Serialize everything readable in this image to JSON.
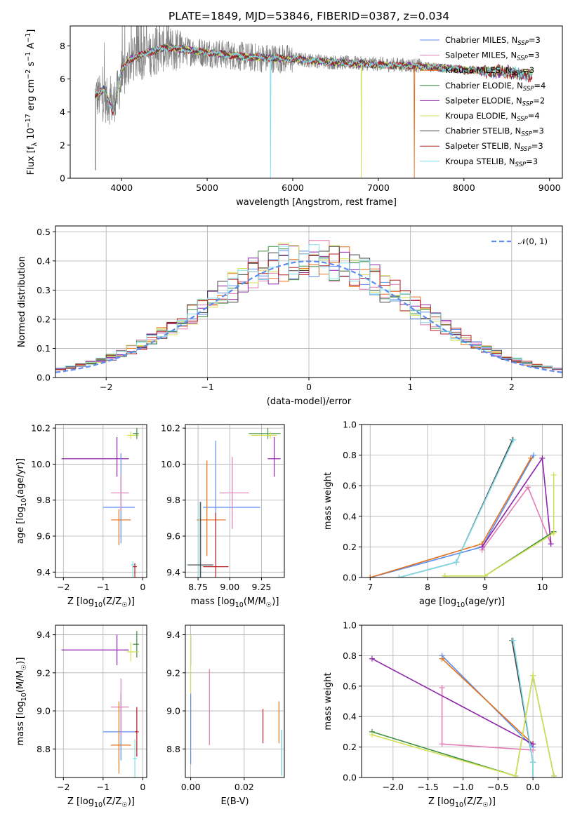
{
  "figure_title": "PLATE=1849, MJD=53846, FIBERID=0387, z=0.034",
  "models": [
    {
      "name": "Chabrier MILES",
      "nssp": "3",
      "color": "#5b8def"
    },
    {
      "name": "Salpeter MILES",
      "nssp": "3",
      "color": "#e27cb6"
    },
    {
      "name": "Kroupa MILES",
      "nssp": "3",
      "color": "#e2711d"
    },
    {
      "name": "Chabrier ELODIE",
      "nssp": "4",
      "color": "#3e8e41"
    },
    {
      "name": "Salpeter ELODIE",
      "nssp": "2",
      "color": "#8e24aa"
    },
    {
      "name": "Kroupa ELODIE",
      "nssp": "4",
      "color": "#d4e157"
    },
    {
      "name": "Chabrier STELIB",
      "nssp": "3",
      "color": "#444444"
    },
    {
      "name": "Salpeter STELIB",
      "nssp": "3",
      "color": "#b71c1c"
    },
    {
      "name": "Kroupa STELIB",
      "nssp": "3",
      "color": "#80deea"
    }
  ],
  "chart_data": [
    {
      "id": "spectrum",
      "type": "line",
      "title": "PLATE=1849, MJD=53846, FIBERID=0387, z=0.034",
      "xlabel": "wavelength [Angstrom, rest frame]",
      "ylabel": "Flux [f_λ 10^-17 erg cm^-2 s^-1 A^-1]",
      "xlim": [
        3400,
        9150
      ],
      "ylim": [
        0,
        9.2
      ],
      "xticks": [
        4000,
        5000,
        6000,
        7000,
        8000,
        9000
      ],
      "yticks": [
        0,
        2,
        4,
        6,
        8
      ],
      "observed_color": "#808080",
      "observed_envelope": {
        "x": [
          3700,
          3900,
          4100,
          4300,
          4500,
          5000,
          5500,
          6000,
          6500,
          7000,
          7500,
          8000,
          8500,
          8800
        ],
        "mean": [
          5.0,
          4.5,
          7.1,
          7.4,
          7.8,
          7.6,
          7.3,
          7.2,
          7.0,
          6.9,
          6.8,
          6.6,
          6.4,
          6.1
        ]
      },
      "model_mean": {
        "x": [
          3700,
          3800,
          3900,
          4000,
          4100,
          4200,
          4300,
          4400,
          4500,
          4700,
          5000,
          5500,
          6000,
          6500,
          7000,
          7500,
          8000,
          8500,
          8800
        ],
        "y": [
          5.0,
          5.4,
          4.0,
          6.6,
          7.2,
          7.4,
          7.6,
          7.7,
          7.9,
          7.8,
          7.6,
          7.3,
          7.2,
          7.0,
          6.85,
          6.75,
          6.55,
          6.4,
          6.2
        ]
      },
      "dropouts": [
        {
          "model": "Kroupa STELIB",
          "x": 5740
        },
        {
          "model": "Kroupa ELODIE",
          "x": 6800
        },
        {
          "model": "Kroupa MILES",
          "x": 7420
        }
      ]
    },
    {
      "id": "residuals",
      "type": "bar",
      "xlabel": "(data-model)/error",
      "ylabel": "Normed distribution",
      "xlim": [
        -2.5,
        2.5
      ],
      "ylim": [
        0,
        0.52
      ],
      "xticks": [
        -2,
        -1,
        0,
        1,
        2
      ],
      "yticks": [
        0.0,
        0.1,
        0.2,
        0.3,
        0.4,
        0.5
      ],
      "bin_width": 0.1,
      "reference_label": "𝒩(0, 1)",
      "reference_color": "#5b8def"
    },
    {
      "id": "age-vs-z",
      "type": "scatter",
      "xlabel": "Z [log10(Z/Z☉)]",
      "ylabel": "age [log10(age/yr)]",
      "xlim": [
        -2.2,
        0.1
      ],
      "ylim": [
        9.37,
        10.22
      ],
      "xticks": [
        -2,
        -1,
        0
      ],
      "yticks": [
        9.4,
        9.6,
        9.8,
        10.0,
        10.2
      ],
      "points": [
        {
          "model": "Salpeter ELODIE",
          "x": -0.65,
          "xerr": [
            1.4,
            0.3
          ],
          "y": 10.03,
          "yerr": [
            0.1,
            0.12
          ]
        },
        {
          "model": "Chabrier MILES",
          "x": -0.55,
          "xerr": [
            0.45,
            0.35
          ],
          "y": 9.76,
          "yerr": [
            0.2,
            0.3
          ]
        },
        {
          "model": "Salpeter MILES",
          "x": -0.55,
          "xerr": [
            0.25,
            0.2
          ],
          "y": 9.84,
          "yerr": [
            0.1,
            0.1
          ]
        },
        {
          "model": "Kroupa MILES",
          "x": -0.6,
          "xerr": [
            0.2,
            0.3
          ],
          "y": 9.69,
          "yerr": [
            0.14,
            0.06
          ]
        },
        {
          "model": "Kroupa ELODIE",
          "x": -0.3,
          "xerr": [
            0.1,
            0.2
          ],
          "y": 10.16,
          "yerr": [
            0.02,
            0.02
          ]
        },
        {
          "model": "Chabrier ELODIE",
          "x": -0.15,
          "xerr": [
            0.1,
            0.05
          ],
          "y": 10.17,
          "yerr": [
            0.03,
            0.03
          ]
        },
        {
          "model": "Kroupa STELIB",
          "x": -0.25,
          "xerr": [
            0.05,
            0.05
          ],
          "y": 9.44,
          "yerr": [
            0.3,
            0.02
          ]
        },
        {
          "model": "Salpeter STELIB",
          "x": -0.2,
          "xerr": [
            0.05,
            0.05
          ],
          "y": 9.43,
          "yerr": [
            0.3,
            0.02
          ]
        }
      ]
    },
    {
      "id": "age-vs-mass",
      "type": "scatter",
      "xlabel": "mass [log10(M/M☉)]",
      "ylabel": "",
      "xlim": [
        8.65,
        9.43
      ],
      "ylim": [
        9.37,
        10.22
      ],
      "xticks": [
        8.75,
        9.0,
        9.25
      ],
      "tick_labels": [
        "8.75",
        "9.00",
        "9.25"
      ],
      "yticks": [
        9.4,
        9.6,
        9.8,
        10.0,
        10.2
      ],
      "points": [
        {
          "model": "Salpeter ELODIE",
          "x": 9.35,
          "xerr": [
            0.05,
            0.05
          ],
          "y": 10.03,
          "yerr": [
            0.1,
            0.12
          ]
        },
        {
          "model": "Chabrier ELODIE",
          "x": 9.3,
          "xerr": [
            0.15,
            0.1
          ],
          "y": 10.17,
          "yerr": [
            0.03,
            0.03
          ]
        },
        {
          "model": "Kroupa ELODIE",
          "x": 9.32,
          "xerr": [
            0.15,
            0.05
          ],
          "y": 10.16,
          "yerr": [
            0.02,
            0.02
          ]
        },
        {
          "model": "Chabrier MILES",
          "x": 8.89,
          "xerr": [
            0.1,
            0.35
          ],
          "y": 9.76,
          "yerr": [
            0.3,
            0.37
          ]
        },
        {
          "model": "Salpeter MILES",
          "x": 9.02,
          "xerr": [
            0.1,
            0.13
          ],
          "y": 9.84,
          "yerr": [
            0.2,
            0.2
          ]
        },
        {
          "model": "Kroupa MILES",
          "x": 8.82,
          "xerr": [
            0.08,
            0.15
          ],
          "y": 9.69,
          "yerr": [
            0.2,
            0.33
          ]
        },
        {
          "model": "Salpeter STELIB",
          "x": 8.89,
          "xerr": [
            0.1,
            0.1
          ],
          "y": 9.43,
          "yerr": [
            0.3,
            0.3
          ]
        },
        {
          "model": "Kroupa STELIB",
          "x": 8.76,
          "xerr": [
            0.1,
            0.1
          ],
          "y": 9.44,
          "yerr": [
            0.35,
            0.35
          ]
        },
        {
          "model": "Chabrier STELIB",
          "x": 8.77,
          "xerr": [
            0.1,
            0.1
          ],
          "y": 9.44,
          "yerr": [
            0.35,
            0.35
          ]
        }
      ]
    },
    {
      "id": "weight-vs-age",
      "type": "line",
      "xlabel": "age [log10(age/yr)]",
      "ylabel": "mass weight",
      "xlim": [
        6.85,
        10.35
      ],
      "ylim": [
        0,
        1
      ],
      "xticks": [
        7,
        8,
        9,
        10
      ],
      "yticks": [
        0.0,
        0.2,
        0.4,
        0.6,
        0.8,
        1.0
      ],
      "series": [
        {
          "model": "Chabrier MILES",
          "x": [
            7.0,
            8.95,
            9.85
          ],
          "y": [
            0.0,
            0.2,
            0.8
          ]
        },
        {
          "model": "Kroupa MILES",
          "x": [
            7.0,
            8.95,
            9.8
          ],
          "y": [
            0.0,
            0.22,
            0.78
          ]
        },
        {
          "model": "Salpeter MILES",
          "x": [
            8.95,
            9.75,
            10.15
          ],
          "y": [
            0.18,
            0.59,
            0.22
          ]
        },
        {
          "model": "Salpeter ELODIE",
          "x": [
            8.95,
            10.0,
            10.15
          ],
          "y": [
            0.2,
            0.78,
            0.22
          ]
        },
        {
          "model": "Chabrier STELIB",
          "x": [
            7.5,
            8.5,
            9.48
          ],
          "y": [
            0.0,
            0.1,
            0.9
          ]
        },
        {
          "model": "Kroupa STELIB",
          "x": [
            7.5,
            8.5,
            9.5
          ],
          "y": [
            0.0,
            0.1,
            0.9
          ]
        },
        {
          "model": "Chabrier ELODIE",
          "x": [
            8.3,
            9.0,
            10.2
          ],
          "y": [
            0.01,
            0.01,
            0.3
          ]
        },
        {
          "model": "Kroupa ELODIE",
          "x": [
            8.3,
            9.0,
            10.2,
            10.2
          ],
          "y": [
            0.01,
            0.01,
            0.29,
            0.67
          ]
        }
      ]
    },
    {
      "id": "mass-vs-z",
      "type": "scatter",
      "xlabel": "Z [log10(Z/Z☉)]",
      "ylabel": "mass [log10(M/M☉)]",
      "xlim": [
        -2.2,
        0.1
      ],
      "ylim": [
        8.65,
        9.45
      ],
      "xticks": [
        -2,
        -1,
        0
      ],
      "yticks": [
        8.8,
        9.0,
        9.2,
        9.4
      ],
      "points": [
        {
          "model": "Salpeter ELODIE",
          "x": -0.65,
          "xerr": [
            1.4,
            0.3
          ],
          "y": 9.32,
          "yerr": [
            0.08,
            0.08
          ]
        },
        {
          "model": "Chabrier ELODIE",
          "x": -0.15,
          "xerr": [
            0.1,
            0.05
          ],
          "y": 9.35,
          "yerr": [
            0.07,
            0.07
          ]
        },
        {
          "model": "Kroupa ELODIE",
          "x": -0.3,
          "xerr": [
            0.1,
            0.2
          ],
          "y": 9.31,
          "yerr": [
            0.05,
            0.05
          ]
        },
        {
          "model": "Chabrier MILES",
          "x": -0.55,
          "xerr": [
            0.45,
            0.35
          ],
          "y": 8.89,
          "yerr": [
            0.15,
            0.2
          ]
        },
        {
          "model": "Salpeter MILES",
          "x": -0.55,
          "xerr": [
            0.25,
            0.2
          ],
          "y": 9.02,
          "yerr": [
            0.15,
            0.15
          ]
        },
        {
          "model": "Kroupa MILES",
          "x": -0.6,
          "xerr": [
            0.2,
            0.3
          ],
          "y": 8.82,
          "yerr": [
            0.15,
            0.23
          ]
        },
        {
          "model": "Salpeter STELIB",
          "x": -0.15,
          "xerr": [
            0.05,
            0.05
          ],
          "y": 8.89,
          "yerr": [
            0.13,
            0.13
          ]
        },
        {
          "model": "Kroupa STELIB",
          "x": -0.2,
          "xerr": [
            0.05,
            0.05
          ],
          "y": 8.75,
          "yerr": [
            0.1,
            0.1
          ]
        }
      ]
    },
    {
      "id": "mass-vs-ebv",
      "type": "scatter",
      "xlabel": "E(B-V)",
      "ylabel": "",
      "xlim": [
        -0.002,
        0.035
      ],
      "ylim": [
        8.65,
        9.45
      ],
      "xticks": [
        0.0,
        0.02
      ],
      "tick_labels": [
        "0.00",
        "0.02"
      ],
      "yticks": [
        8.8,
        9.0,
        9.2,
        9.4
      ],
      "points": [
        {
          "model": "Salpeter ELODIE",
          "x": 0.0,
          "y": 9.32,
          "yerr": [
            0.08,
            0.08
          ]
        },
        {
          "model": "Kroupa ELODIE",
          "x": 0.0,
          "y": 9.15,
          "yerr": [
            0.2,
            0.25
          ]
        },
        {
          "model": "Chabrier MILES",
          "x": 0.0,
          "y": 8.89,
          "yerr": [
            0.17,
            0.2
          ]
        },
        {
          "model": "Salpeter MILES",
          "x": 0.007,
          "y": 9.02,
          "yerr": [
            0.2,
            0.2
          ]
        },
        {
          "model": "Salpeter STELIB",
          "x": 0.027,
          "y": 8.92,
          "yerr": [
            0.09,
            0.09
          ]
        },
        {
          "model": "Kroupa MILES",
          "x": 0.033,
          "y": 8.94,
          "yerr": [
            0.11,
            0.11
          ]
        },
        {
          "model": "Chabrier ELODIE",
          "x": 0.034,
          "y": 8.78,
          "yerr": [
            0.12,
            0.12
          ]
        },
        {
          "model": "Kroupa STELIB",
          "x": 0.034,
          "y": 8.78,
          "yerr": [
            0.12,
            0.12
          ]
        }
      ]
    },
    {
      "id": "weight-vs-z",
      "type": "line",
      "xlabel": "Z [log10(Z/Z☉)]",
      "ylabel": "mass weight",
      "xlim": [
        -2.45,
        0.42
      ],
      "ylim": [
        0,
        1
      ],
      "xticks": [
        -2.0,
        -1.5,
        -1.0,
        -0.5,
        0.0
      ],
      "tick_labels": [
        "−2.0",
        "−1.5",
        "−1.0",
        "−0.5",
        "0.0"
      ],
      "yticks": [
        0.0,
        0.2,
        0.4,
        0.6,
        0.8,
        1.0
      ],
      "series": [
        {
          "model": "Chabrier MILES",
          "x": [
            -1.3,
            0.0
          ],
          "y": [
            0.8,
            0.2
          ]
        },
        {
          "model": "Kroupa MILES",
          "x": [
            -1.3,
            0.0
          ],
          "y": [
            0.78,
            0.22
          ]
        },
        {
          "model": "Salpeter MILES",
          "x": [
            -1.3,
            -1.3,
            0.0
          ],
          "y": [
            0.59,
            0.22,
            0.18
          ]
        },
        {
          "model": "Salpeter ELODIE",
          "x": [
            -2.3,
            0.0
          ],
          "y": [
            0.78,
            0.22
          ]
        },
        {
          "model": "Chabrier STELIB",
          "x": [
            -0.3,
            0.0,
            0.0
          ],
          "y": [
            0.9,
            0.1,
            0.0
          ]
        },
        {
          "model": "Kroupa STELIB",
          "x": [
            -0.28,
            0.0,
            0.0
          ],
          "y": [
            0.9,
            0.1,
            0.0
          ]
        },
        {
          "model": "Chabrier ELODIE",
          "x": [
            -2.3,
            -0.25,
            0.0,
            0.3
          ],
          "y": [
            0.3,
            0.01,
            0.67,
            0.01
          ]
        },
        {
          "model": "Kroupa ELODIE",
          "x": [
            -2.3,
            -0.25,
            0.0,
            0.3
          ],
          "y": [
            0.28,
            0.01,
            0.67,
            0.01
          ]
        }
      ]
    }
  ]
}
